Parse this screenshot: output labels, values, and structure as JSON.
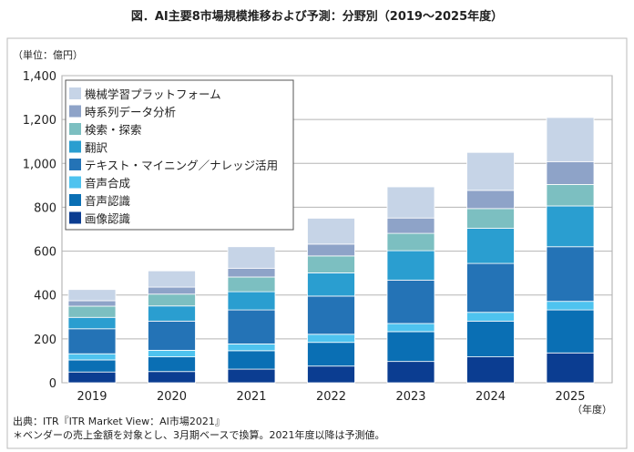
{
  "chart_data": {
    "type": "bar",
    "stacked": true,
    "title": "図．AI主要8市場規模推移および予測：分野別（2019～2025年度）",
    "unit_label": "（単位：億円）",
    "xlabel": "（年度）",
    "ylabel": "",
    "ylim": [
      0,
      1400
    ],
    "yticks": [
      0,
      200,
      400,
      600,
      800,
      1000,
      1200,
      1400
    ],
    "ytick_labels": [
      "0",
      "200",
      "400",
      "600",
      "800",
      "1,000",
      "1,200",
      "1,400"
    ],
    "grid": true,
    "legend_position": "top-left",
    "categories": [
      "2019",
      "2020",
      "2021",
      "2022",
      "2023",
      "2024",
      "2025"
    ],
    "series": [
      {
        "name": "画像認識",
        "color": "#0b3d91",
        "values": [
          49,
          51,
          62,
          76,
          97,
          118,
          136
        ]
      },
      {
        "name": "音声認識",
        "color": "#0a6fb4",
        "values": [
          55,
          67,
          84,
          108,
          136,
          163,
          196
        ]
      },
      {
        "name": "音声合成",
        "color": "#4ec3ef",
        "values": [
          28,
          30,
          31,
          37,
          37,
          40,
          39
        ]
      },
      {
        "name": "テキスト・マイニング／ナレッジ活用",
        "color": "#2473b6",
        "values": [
          114,
          133,
          155,
          174,
          198,
          223,
          249
        ]
      },
      {
        "name": "翻訳",
        "color": "#2a9ed0",
        "values": [
          52,
          69,
          83,
          106,
          134,
          160,
          186
        ]
      },
      {
        "name": "検索・探索",
        "color": "#7cbfc1",
        "values": [
          51,
          54,
          67,
          77,
          79,
          90,
          98
        ]
      },
      {
        "name": "時系列データ分析",
        "color": "#8ea3c8",
        "values": [
          25,
          32,
          40,
          54,
          70,
          83,
          104
        ]
      },
      {
        "name": "機械学習プラットフォーム",
        "color": "#c6d4e7",
        "values": [
          51,
          74,
          98,
          118,
          142,
          173,
          201
        ]
      }
    ]
  },
  "footer": {
    "source": "出典：ITR『ITR Market View：AI市場2021』",
    "note": "＊ベンダーの売上金額を対象とし、3月期ベースで換算。2021年度以降は予測値。"
  }
}
